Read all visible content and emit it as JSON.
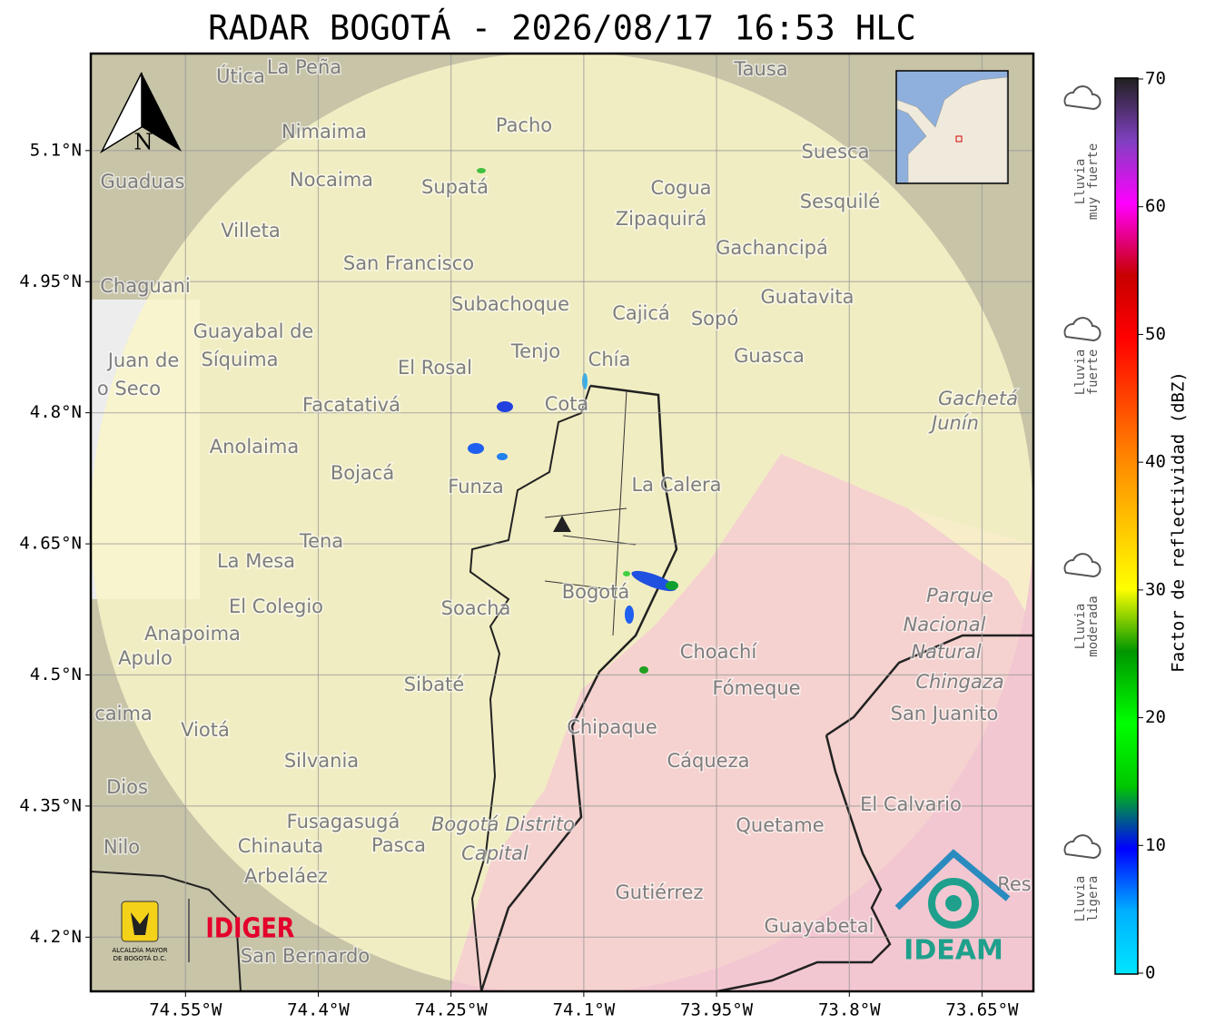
{
  "title": "RADAR BOGOTÁ - 2026/08/17 16:53 HLC",
  "map": {
    "xlim": [
      -74.657,
      -73.592
    ],
    "ylim": [
      4.138,
      5.211
    ],
    "xticks": [
      {
        "value": -74.55,
        "label": "74.55°W"
      },
      {
        "value": -74.4,
        "label": "74.4°W"
      },
      {
        "value": -74.25,
        "label": "74.25°W"
      },
      {
        "value": -74.1,
        "label": "74.1°W"
      },
      {
        "value": -73.95,
        "label": "73.95°W"
      },
      {
        "value": -73.8,
        "label": "73.8°W"
      },
      {
        "value": -73.65,
        "label": "73.65°W"
      }
    ],
    "yticks": [
      {
        "value": 5.1,
        "label": "5.1°N"
      },
      {
        "value": 4.95,
        "label": "4.95°N"
      },
      {
        "value": 4.8,
        "label": "4.8°N"
      },
      {
        "value": 4.65,
        "label": "4.65°N"
      },
      {
        "value": 4.5,
        "label": "4.5°N"
      },
      {
        "value": 4.35,
        "label": "4.35°N"
      },
      {
        "value": 4.2,
        "label": "4.2°N"
      }
    ],
    "grid": true,
    "north_label": "N",
    "places": [
      "Útica",
      "La Peña",
      "Tausa",
      "Pacho",
      "Nimaima",
      "Guaduas",
      "Nocaima",
      "Supatá",
      "Cogua",
      "Suesca",
      "Sesquilé",
      "Zipaquirá",
      "Villeta",
      "Gachancipá",
      "San Francisco",
      "Chaguani",
      "Guatavita",
      "Subachoque",
      "Cajicá",
      "Sopó",
      "Guayabal de",
      "Síquima",
      "Tenjo",
      "Chía",
      "Guasca",
      "Juan de",
      "El Rosal",
      "o Seco",
      "Cota",
      "Facatativá",
      "Gachetá",
      "Junín",
      "Anolaima",
      "Bojacá",
      "Funza",
      "La Calera",
      "Tena",
      "La Mesa",
      "Bogotá",
      "Parque",
      "El Colegio",
      "Soacha",
      "Nacional",
      "Anapoima",
      "Apulo",
      "Natural",
      "Choachí",
      "Chingaza",
      "Sibaté",
      "Fómeque",
      "caima",
      "San Juanito",
      "Viotá",
      "Chipaque",
      "Silvania",
      "Cáqueza",
      "Dios",
      "El Calvario",
      "Fusagasugá",
      "Bogotá Distrito",
      "Quetame",
      "Nilo",
      "Chinauta",
      "Pasca",
      "Capital",
      "Arbeláez",
      "Gutiérrez",
      "Res",
      "Guayabetal",
      "San Bernardo"
    ]
  },
  "colorbar": {
    "label": "Factor de reflectividad (dBZ)",
    "lim": [
      0,
      70
    ],
    "ticks": [
      0,
      10,
      20,
      30,
      40,
      50,
      60,
      70
    ],
    "categories": [
      [
        "Lluvia",
        "muy fuerte"
      ],
      [
        "Lluvia",
        "fuerte"
      ],
      [
        "Lluvia",
        "moderada"
      ],
      [
        "Lluvia",
        "ligera"
      ]
    ]
  },
  "logos": {
    "alcaldia": [
      "ALCALDÍA MAYOR",
      "DE BOGOTÁ D.C."
    ],
    "idiger": "IDIGER",
    "ideam": "IDEAM"
  }
}
